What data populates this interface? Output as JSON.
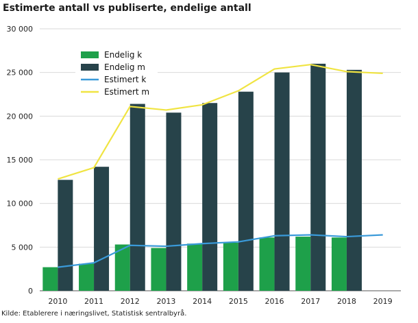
{
  "chart_data": {
    "type": "bar",
    "title": "Estimerte antall vs publiserte, endelige antall",
    "xlabel": "",
    "ylabel": "",
    "categories": [
      "2010",
      "2011",
      "2012",
      "2013",
      "2014",
      "2015",
      "2016",
      "2017",
      "2018",
      "2019"
    ],
    "ylim": [
      0,
      30000
    ],
    "yticks": [
      0,
      5000,
      10000,
      15000,
      20000,
      25000,
      30000
    ],
    "ytick_labels": [
      "0",
      "5 000",
      "10 000",
      "15 000",
      "20 000",
      "25 000",
      "30 000"
    ],
    "grid": true,
    "legend_position": "top-left",
    "series": [
      {
        "name": "Endelig k",
        "kind": "bar",
        "color": "#1ea04a",
        "values": [
          2700,
          3100,
          5300,
          4900,
          5400,
          5500,
          6100,
          6200,
          6100,
          null
        ]
      },
      {
        "name": "Endelig m",
        "kind": "bar",
        "color": "#27434a",
        "values": [
          12700,
          14200,
          21400,
          20400,
          21500,
          22800,
          25000,
          26000,
          25300,
          null
        ]
      },
      {
        "name": "Estimert k",
        "kind": "line",
        "color": "#3a9ad9",
        "values": [
          2700,
          3200,
          5200,
          5100,
          5400,
          5600,
          6300,
          6400,
          6200,
          6400
        ]
      },
      {
        "name": "Estimert m",
        "kind": "line",
        "color": "#f0e442",
        "values": [
          12800,
          14100,
          21100,
          20700,
          21300,
          22900,
          25400,
          25900,
          25100,
          24900
        ]
      }
    ]
  },
  "source": "Kilde: Etablerere i næringslivet, Statistisk sentralbyrå.",
  "colors": {
    "grid": "#d9d9d9",
    "axis": "#555555"
  }
}
